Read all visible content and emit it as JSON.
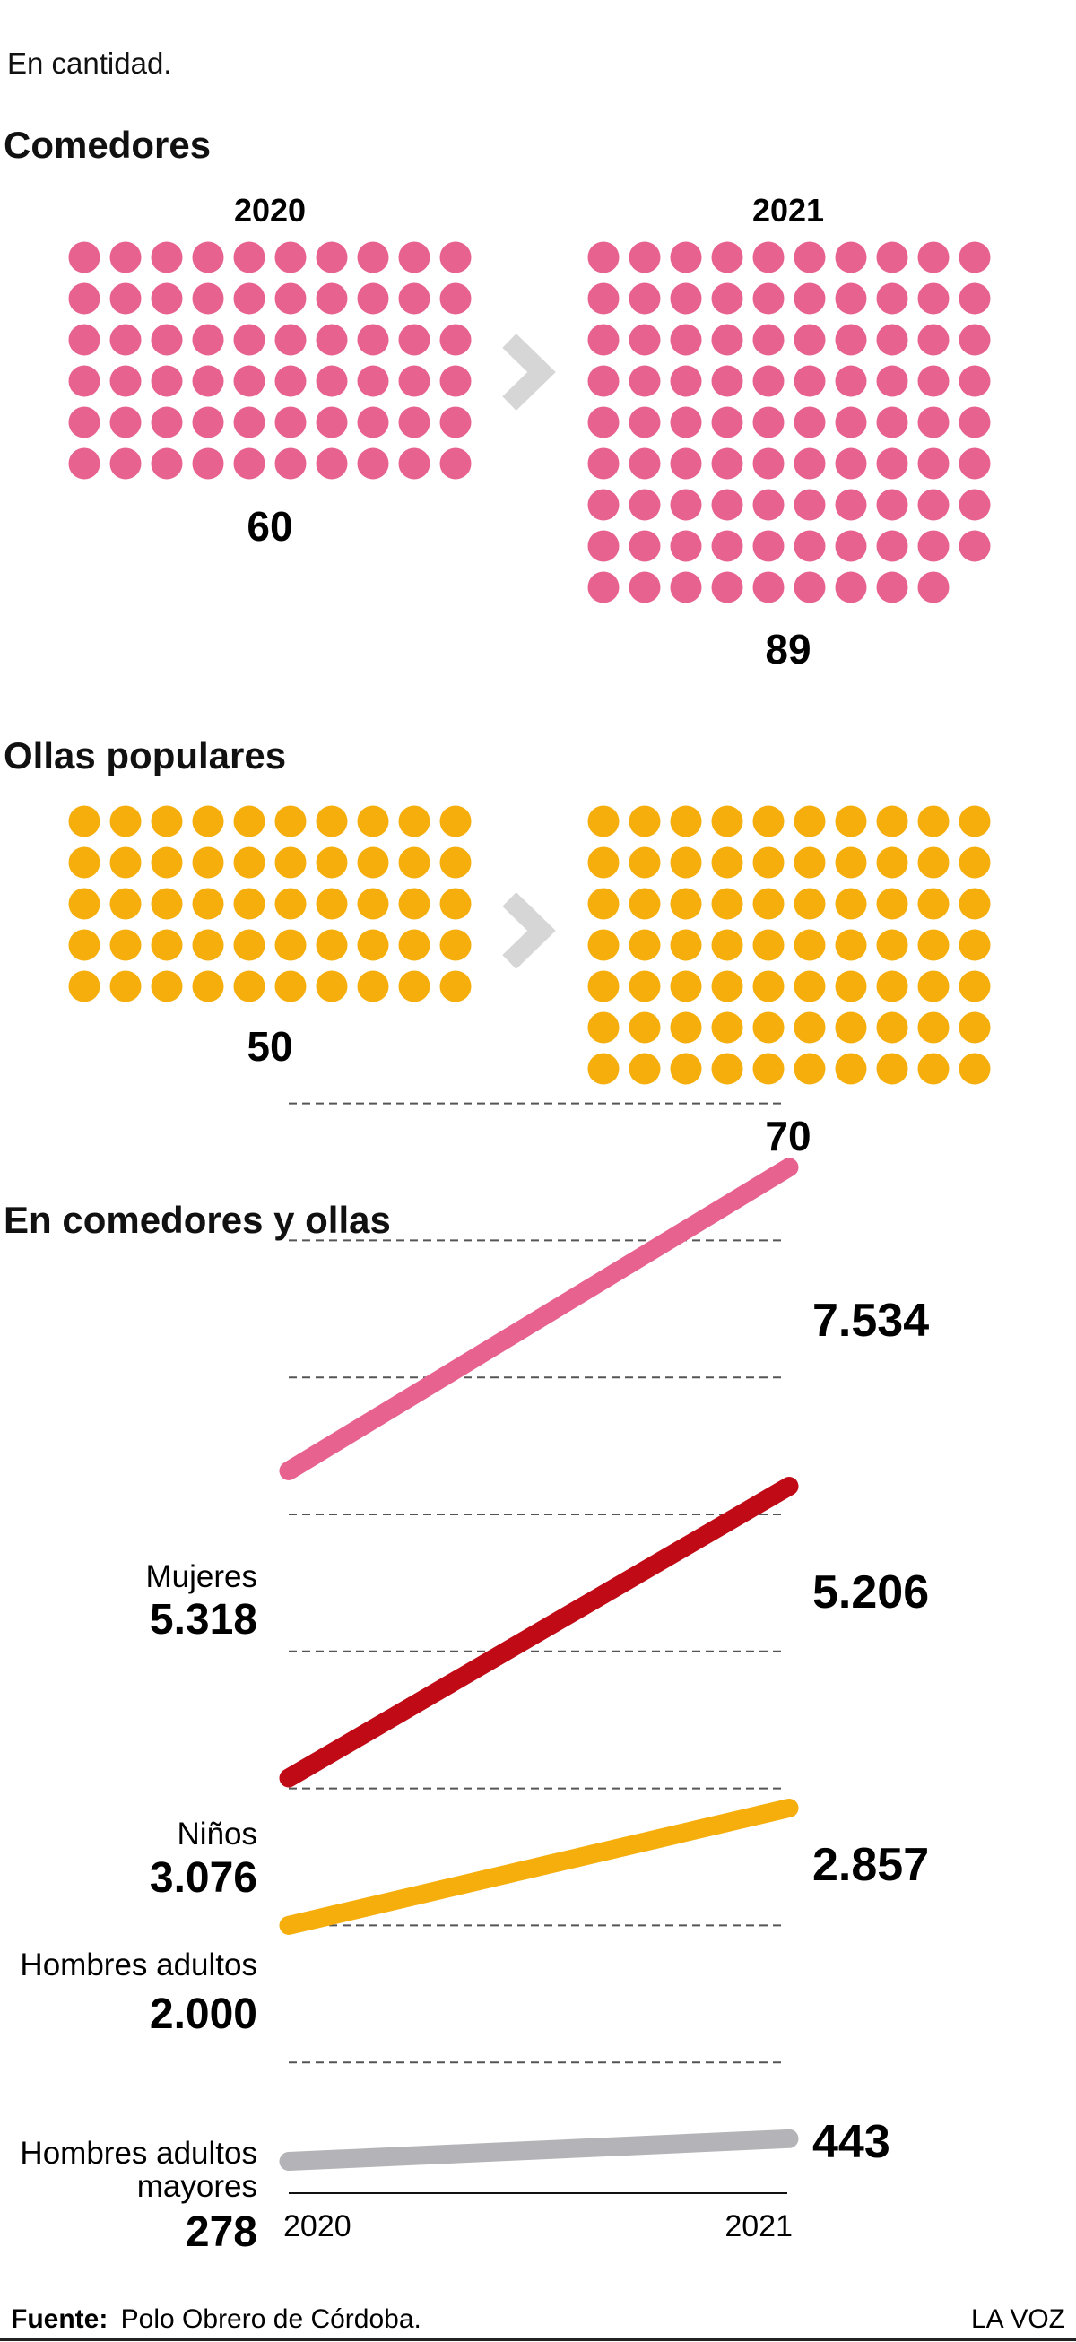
{
  "subtitle": "En cantidad.",
  "colors": {
    "comedores": "#E8628F",
    "ollas": "#F5AE0B",
    "mujeres": "#E8628F",
    "ninos": "#C00B17",
    "hombres": "#F5AE0B",
    "mayores": "#B4B4B8",
    "arrow": "#D6D6D6",
    "grid": "#555555"
  },
  "chart_data": [
    {
      "type": "dot-matrix",
      "title": "Comedores",
      "categories": [
        "2020",
        "2021"
      ],
      "values": [
        60,
        89
      ],
      "value_labels": [
        "60",
        "89"
      ],
      "dots_per_row": 10
    },
    {
      "type": "dot-matrix",
      "title": "Ollas populares",
      "categories": [
        "2020",
        "2021"
      ],
      "values": [
        50,
        70
      ],
      "value_labels": [
        "50",
        "70"
      ],
      "dots_per_row": 10
    },
    {
      "type": "line",
      "title": "En comedores y ollas",
      "x": [
        "2020",
        "2021"
      ],
      "ylim": [
        0,
        8000
      ],
      "grid": true,
      "series": [
        {
          "name": "Mujeres",
          "values": [
            5318,
            7534
          ],
          "start_label": "5.318",
          "end_label": "7.534",
          "color_key": "mujeres"
        },
        {
          "name": "Niños",
          "values": [
            3076,
            5206
          ],
          "start_label": "3.076",
          "end_label": "5.206",
          "color_key": "ninos"
        },
        {
          "name": "Hombres adultos",
          "values": [
            2000,
            2857
          ],
          "start_label": "2.000",
          "end_label": "2.857",
          "color_key": "hombres"
        },
        {
          "name": "Hombres adultos mayores",
          "name_lines": [
            "Hombres adultos",
            "mayores"
          ],
          "values": [
            278,
            443
          ],
          "start_label": "278",
          "end_label": "443",
          "color_key": "mayores"
        }
      ]
    }
  ],
  "footer": {
    "source_label": "Fuente:",
    "source_text": "Polo Obrero de Córdoba.",
    "brand": "LA VOZ"
  }
}
